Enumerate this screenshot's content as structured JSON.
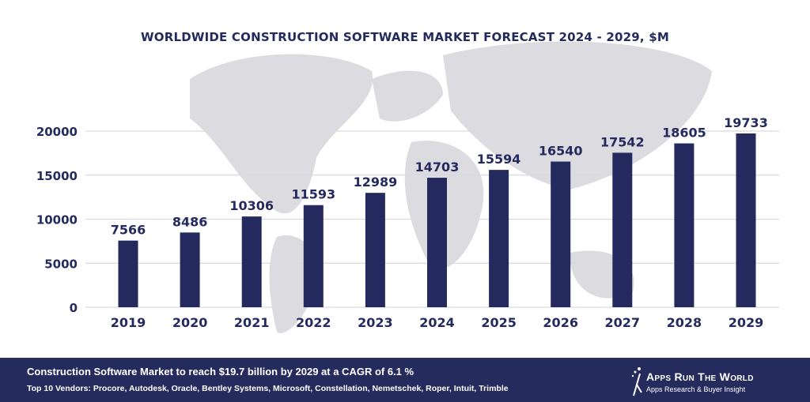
{
  "chart_data": {
    "type": "bar",
    "title": "WORLDWIDE CONSTRUCTION SOFTWARE MARKET FORECAST 2024 - 2029, $M",
    "categories": [
      "2019",
      "2020",
      "2021",
      "2022",
      "2023",
      "2024",
      "2025",
      "2026",
      "2027",
      "2028",
      "2029"
    ],
    "values": [
      7566,
      8486,
      10306,
      11593,
      12989,
      14703,
      15594,
      16540,
      17542,
      18605,
      19733
    ],
    "yticks": [
      0,
      5000,
      10000,
      15000,
      20000
    ],
    "ylim": [
      0,
      20000
    ],
    "grid": true,
    "xlabel": "",
    "ylabel": "",
    "bar_color": "#252a5e",
    "background": "world map (light gray)"
  },
  "footer": {
    "headline": "Construction Software Market to reach $19.7 billion by 2029 at a CAGR of 6.1 %",
    "vendors": "Top 10 Vendors: Procore, Autodesk, Oracle, Bentley Systems, Microsoft, Constellation, Nemetschek, Roper, Intuit, Trimble",
    "logo_name": "Apps Run The World",
    "logo_tagline": "Apps Research & Buyer Insight",
    "color": "#262b5e"
  }
}
